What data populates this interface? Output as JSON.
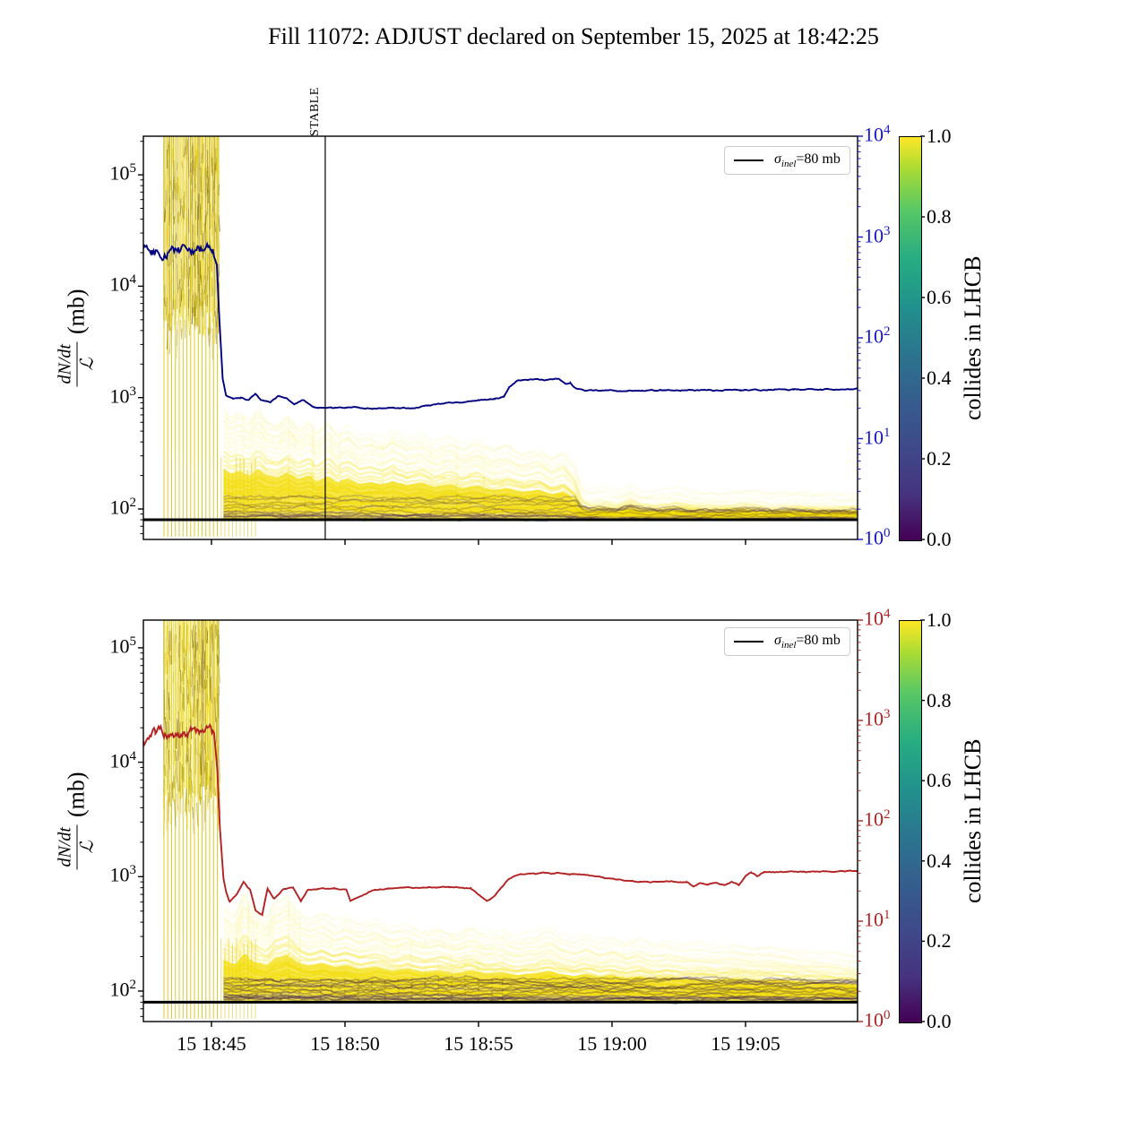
{
  "title": "Fill 11072: ADJUST declared on September 15, 2025 at 18:42:25",
  "axes": {
    "ylabel_numerator": "dN/dt",
    "ylabel_denominator": "ℒ",
    "ylabel_unit": "(mb)",
    "left_tick_exponents": [
      "5",
      "4",
      "3",
      "2"
    ],
    "right_tick_exponents": [
      "4",
      "3",
      "2",
      "1",
      "0"
    ],
    "x_tick_labels": [
      "15 18:45",
      "15 18:50",
      "15 18:55",
      "15 19:00",
      "15 19:05"
    ],
    "right_axis_color_top": "#1414d2",
    "right_axis_color_bottom": "#b22222"
  },
  "colorbar": {
    "label": "collides in LHCB",
    "tick_labels": [
      "1.0",
      "0.8",
      "0.6",
      "0.4",
      "0.2",
      "0.0"
    ],
    "colormap": "viridis",
    "color_min": "#440154",
    "color_max": "#fde725"
  },
  "legend": {
    "sigma": "σ",
    "sub": "inel",
    "rest": "=80 mb"
  },
  "annotations": {
    "stable": "STABLE"
  },
  "colors": {
    "top_line": "#000080",
    "bottom_line": "#b22222",
    "band_yellow": "#f3dd00",
    "band_purple": "#3d1b55",
    "reference_black": "#000000"
  },
  "chart_data": [
    {
      "type": "line",
      "panel": "top",
      "x_unit": "minutes after 18:40:00 on Sep 15 (axis shows day+time)",
      "xlim": [
        2.45,
        29.24
      ],
      "y_axis_left": "dN/dt / L (mb), log scale",
      "ylim_left": [
        53,
        220000
      ],
      "right_axis": {
        "scale": "log",
        "range": [
          1,
          10000
        ],
        "color": "blue"
      },
      "reference_line_mb": 80,
      "stable_marker_t": 9.26,
      "series": [
        {
          "name": "main_line_dNdt_over_L",
          "color": "#000080",
          "noisy_until": 5.1,
          "noise_dex": 0.07,
          "points": [
            [
              2.45,
              21000
            ],
            [
              2.8,
              20000
            ],
            [
              3.2,
              22000
            ],
            [
              3.6,
              21000
            ],
            [
              4.0,
              20500
            ],
            [
              4.4,
              22000
            ],
            [
              4.8,
              21000
            ],
            [
              5.05,
              21000
            ],
            [
              5.2,
              16000
            ],
            [
              5.3,
              5000
            ],
            [
              5.42,
              1500
            ],
            [
              5.55,
              1050
            ],
            [
              5.8,
              980
            ],
            [
              6.1,
              1010
            ],
            [
              6.4,
              950
            ],
            [
              6.65,
              1080
            ],
            [
              6.85,
              950
            ],
            [
              7.2,
              900
            ],
            [
              7.5,
              1030
            ],
            [
              7.8,
              1000
            ],
            [
              8.1,
              880
            ],
            [
              8.45,
              950
            ],
            [
              8.8,
              830
            ],
            [
              9.0,
              800
            ],
            [
              9.5,
              805
            ],
            [
              10.2,
              815
            ],
            [
              11.0,
              800
            ],
            [
              11.8,
              805
            ],
            [
              12.5,
              800
            ],
            [
              13.1,
              850
            ],
            [
              13.7,
              880
            ],
            [
              14.3,
              905
            ],
            [
              15.0,
              950
            ],
            [
              15.6,
              975
            ],
            [
              15.95,
              1020
            ],
            [
              16.15,
              1250
            ],
            [
              16.45,
              1430
            ],
            [
              17.0,
              1460
            ],
            [
              17.5,
              1440
            ],
            [
              18.0,
              1465
            ],
            [
              18.25,
              1310
            ],
            [
              18.45,
              1330
            ],
            [
              18.65,
              1210
            ],
            [
              19.0,
              1150
            ],
            [
              19.8,
              1160
            ],
            [
              20.8,
              1150
            ],
            [
              21.8,
              1160
            ],
            [
              22.8,
              1155
            ],
            [
              23.8,
              1165
            ],
            [
              24.8,
              1170
            ],
            [
              25.8,
              1175
            ],
            [
              26.8,
              1185
            ],
            [
              27.8,
              1190
            ],
            [
              29.24,
              1200
            ]
          ]
        },
        {
          "name": "band_upper_envelope",
          "color": "#f3dd00",
          "points": [
            [
              5.45,
              620
            ],
            [
              5.7,
              520
            ],
            [
              5.9,
              560
            ],
            [
              6.2,
              480
            ],
            [
              6.45,
              600
            ],
            [
              6.7,
              480
            ],
            [
              7.0,
              450
            ],
            [
              7.3,
              540
            ],
            [
              7.6,
              420
            ],
            [
              7.9,
              470
            ],
            [
              8.2,
              380
            ],
            [
              8.5,
              450
            ],
            [
              8.8,
              360
            ],
            [
              9.1,
              420
            ],
            [
              9.5,
              340
            ],
            [
              9.8,
              360
            ],
            [
              10.2,
              330
            ],
            [
              10.6,
              380
            ],
            [
              11.0,
              320
            ],
            [
              11.4,
              350
            ],
            [
              11.8,
              300
            ],
            [
              12.3,
              330
            ],
            [
              12.7,
              280
            ],
            [
              13.2,
              310
            ],
            [
              13.7,
              260
            ],
            [
              14.2,
              280
            ],
            [
              14.7,
              240
            ],
            [
              15.2,
              260
            ],
            [
              15.6,
              220
            ],
            [
              15.9,
              240
            ],
            [
              16.3,
              180
            ],
            [
              16.55,
              120
            ],
            [
              16.8,
              110
            ],
            [
              17.3,
              115
            ],
            [
              17.8,
              108
            ],
            [
              18.3,
              125
            ],
            [
              18.7,
              110
            ],
            [
              19.3,
              108
            ],
            [
              20.0,
              115
            ],
            [
              20.6,
              108
            ],
            [
              21.6,
              106
            ],
            [
              22.6,
              112
            ],
            [
              23.6,
              105
            ],
            [
              24.6,
              108
            ],
            [
              25.6,
              104
            ],
            [
              26.6,
              106
            ],
            [
              27.6,
              103
            ],
            [
              28.6,
              104
            ],
            [
              29.24,
              103
            ]
          ]
        },
        {
          "name": "band_lower_envelope",
          "color": "#3d1b55",
          "points": [
            [
              5.45,
              84
            ],
            [
              29.24,
              84
            ]
          ]
        },
        {
          "name": "injection_burst",
          "t_range": [
            3.2,
            5.3
          ],
          "v_range": [
            8000,
            220000
          ],
          "description": "dense cluster of per-bunch curves (colorbar value ~1.0, yellow) saturating top of axis"
        }
      ]
    },
    {
      "type": "line",
      "panel": "bottom",
      "x_unit": "minutes after 18:40:00 on Sep 15 (axis shows day+time)",
      "xlim": [
        2.45,
        29.24
      ],
      "y_axis_left": "dN/dt / L (mb), log scale",
      "ylim_left": [
        54,
        175000
      ],
      "right_axis": {
        "scale": "log",
        "range": [
          1,
          10000
        ],
        "color": "red"
      },
      "reference_line_mb": 80,
      "series": [
        {
          "name": "main_line_dNdt_over_L",
          "color": "#b22222",
          "noisy_until": 5.12,
          "noise_dex": 0.07,
          "points": [
            [
              2.45,
              16500
            ],
            [
              2.9,
              17500
            ],
            [
              3.3,
              16000
            ],
            [
              3.7,
              18500
            ],
            [
              4.1,
              17000
            ],
            [
              4.5,
              18000
            ],
            [
              4.9,
              17500
            ],
            [
              5.1,
              16000
            ],
            [
              5.22,
              8000
            ],
            [
              5.32,
              2500
            ],
            [
              5.45,
              950
            ],
            [
              5.55,
              730
            ],
            [
              5.68,
              600
            ],
            [
              5.95,
              700
            ],
            [
              6.2,
              890
            ],
            [
              6.45,
              760
            ],
            [
              6.65,
              500
            ],
            [
              6.9,
              460
            ],
            [
              7.1,
              790
            ],
            [
              7.35,
              640
            ],
            [
              7.7,
              780
            ],
            [
              8.05,
              800
            ],
            [
              8.35,
              610
            ],
            [
              8.6,
              770
            ],
            [
              9.0,
              780
            ],
            [
              9.6,
              790
            ],
            [
              10.05,
              770
            ],
            [
              10.2,
              620
            ],
            [
              10.55,
              680
            ],
            [
              11.0,
              750
            ],
            [
              11.6,
              790
            ],
            [
              12.3,
              800
            ],
            [
              13.1,
              800
            ],
            [
              13.9,
              810
            ],
            [
              14.7,
              800
            ],
            [
              15.05,
              690
            ],
            [
              15.3,
              620
            ],
            [
              15.6,
              670
            ],
            [
              15.9,
              820
            ],
            [
              16.15,
              975
            ],
            [
              16.6,
              1060
            ],
            [
              17.1,
              1050
            ],
            [
              17.4,
              1085
            ],
            [
              17.7,
              1060
            ],
            [
              18.0,
              1085
            ],
            [
              18.4,
              1045
            ],
            [
              18.8,
              1060
            ],
            [
              19.2,
              1030
            ],
            [
              19.7,
              975
            ],
            [
              20.2,
              945
            ],
            [
              20.8,
              915
            ],
            [
              21.5,
              900
            ],
            [
              22.2,
              905
            ],
            [
              22.8,
              885
            ],
            [
              23.05,
              815
            ],
            [
              23.3,
              885
            ],
            [
              23.6,
              850
            ],
            [
              23.9,
              885
            ],
            [
              24.2,
              845
            ],
            [
              24.5,
              895
            ],
            [
              24.75,
              835
            ],
            [
              25.0,
              1005
            ],
            [
              25.2,
              1090
            ],
            [
              25.45,
              1005
            ],
            [
              25.7,
              1095
            ],
            [
              26.2,
              1100
            ],
            [
              27.2,
              1100
            ],
            [
              28.2,
              1105
            ],
            [
              29.24,
              1125
            ]
          ]
        },
        {
          "name": "band_upper_envelope",
          "color": "#f3dd00",
          "points": [
            [
              5.45,
              420
            ],
            [
              5.8,
              350
            ],
            [
              6.1,
              520
            ],
            [
              6.4,
              380
            ],
            [
              6.7,
              340
            ],
            [
              7.0,
              450
            ],
            [
              7.3,
              500
            ],
            [
              7.6,
              380
            ],
            [
              7.9,
              330
            ],
            [
              8.3,
              360
            ],
            [
              8.7,
              310
            ],
            [
              9.1,
              330
            ],
            [
              9.5,
              290
            ],
            [
              10.0,
              310
            ],
            [
              10.5,
              270
            ],
            [
              11.0,
              290
            ],
            [
              11.5,
              255
            ],
            [
              12.0,
              270
            ],
            [
              12.5,
              245
            ],
            [
              13.0,
              270
            ],
            [
              13.5,
              240
            ],
            [
              14.0,
              250
            ],
            [
              14.5,
              225
            ],
            [
              15.0,
              240
            ],
            [
              15.5,
              265
            ],
            [
              15.9,
              230
            ],
            [
              16.3,
              215
            ],
            [
              16.7,
              235
            ],
            [
              17.2,
              210
            ],
            [
              17.7,
              225
            ],
            [
              18.2,
              200
            ],
            [
              18.7,
              215
            ],
            [
              19.2,
              195
            ],
            [
              19.8,
              205
            ],
            [
              20.4,
              190
            ],
            [
              21.0,
              195
            ],
            [
              21.6,
              185
            ],
            [
              22.3,
              195
            ],
            [
              23.0,
              180
            ],
            [
              23.7,
              185
            ],
            [
              24.4,
              175
            ],
            [
              25.1,
              170
            ],
            [
              25.8,
              165
            ],
            [
              26.5,
              160
            ],
            [
              27.2,
              150
            ],
            [
              27.9,
              140
            ],
            [
              28.6,
              128
            ],
            [
              29.24,
              115
            ]
          ]
        },
        {
          "name": "band_lower_envelope",
          "color": "#3d1b55",
          "points": [
            [
              5.45,
              85
            ],
            [
              29.24,
              85
            ]
          ]
        },
        {
          "name": "injection_burst",
          "t_range": [
            3.2,
            5.3
          ],
          "v_range": [
            7000,
            175000
          ],
          "description": "dense cluster of per-bunch curves (colorbar value ~1.0, yellow) saturating top of axis"
        }
      ]
    }
  ]
}
